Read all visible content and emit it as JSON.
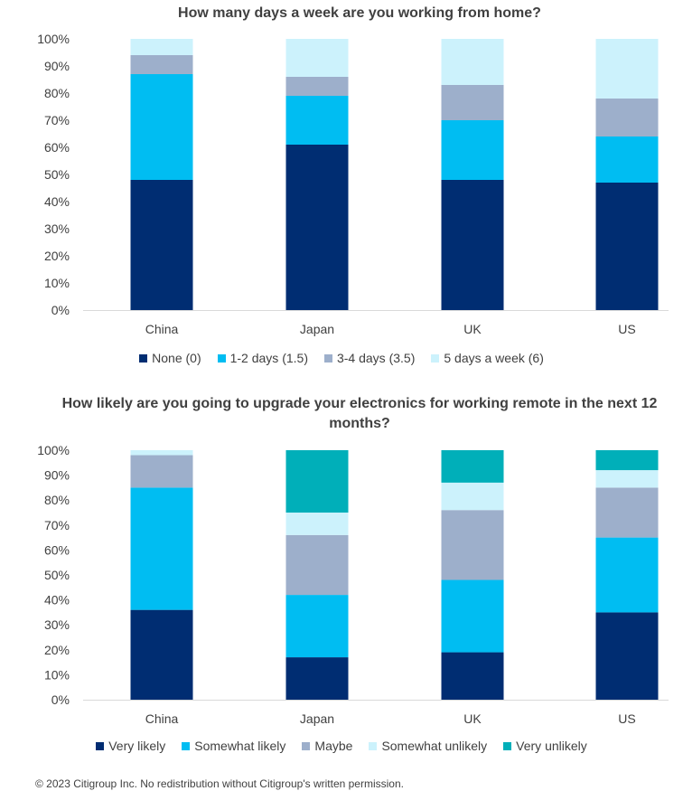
{
  "chart_data": [
    {
      "type": "bar",
      "stacked": true,
      "title": "How many days a week are you working from home?",
      "categories": [
        "China",
        "Japan",
        "UK",
        "US"
      ],
      "series": [
        {
          "name": "None (0)",
          "color": "#002D72",
          "values": [
            48,
            61,
            48,
            47
          ]
        },
        {
          "name": "1-2 days (1.5)",
          "color": "#00BDF2",
          "values": [
            39,
            18,
            22,
            17
          ]
        },
        {
          "name": "3-4 days (3.5)",
          "color": "#9DAFCB",
          "values": [
            7,
            7,
            13,
            14
          ]
        },
        {
          "name": "5 days a week (6)",
          "color": "#CCF2FC",
          "values": [
            6,
            14,
            17,
            22
          ]
        }
      ],
      "ylim": [
        0,
        100
      ],
      "yticks": [
        "0%",
        "10%",
        "20%",
        "30%",
        "40%",
        "50%",
        "60%",
        "70%",
        "80%",
        "90%",
        "100%"
      ],
      "legend_position": "bottom",
      "grid": false
    },
    {
      "type": "bar",
      "stacked": true,
      "title": "How likely are you going to upgrade your electronics for working remote in the next 12 months?",
      "categories": [
        "China",
        "Japan",
        "UK",
        "US"
      ],
      "series": [
        {
          "name": "Very likely",
          "color": "#002D72",
          "values": [
            36,
            17,
            19,
            35
          ]
        },
        {
          "name": "Somewhat likely",
          "color": "#00BDF2",
          "values": [
            49,
            25,
            29,
            30
          ]
        },
        {
          "name": "Maybe",
          "color": "#9DAFCB",
          "values": [
            13,
            24,
            28,
            20
          ]
        },
        {
          "name": "Somewhat unlikely",
          "color": "#CCF2FC",
          "values": [
            2,
            9,
            11,
            7
          ]
        },
        {
          "name": "Very unlikely",
          "color": "#00AFB9",
          "values": [
            0,
            25,
            13,
            8
          ]
        }
      ],
      "ylim": [
        0,
        100
      ],
      "yticks": [
        "0%",
        "10%",
        "20%",
        "30%",
        "40%",
        "50%",
        "60%",
        "70%",
        "80%",
        "90%",
        "100%"
      ],
      "legend_position": "bottom",
      "grid": false
    }
  ],
  "footer": "© 2023 Citigroup Inc. No redistribution without Citigroup's written permission."
}
